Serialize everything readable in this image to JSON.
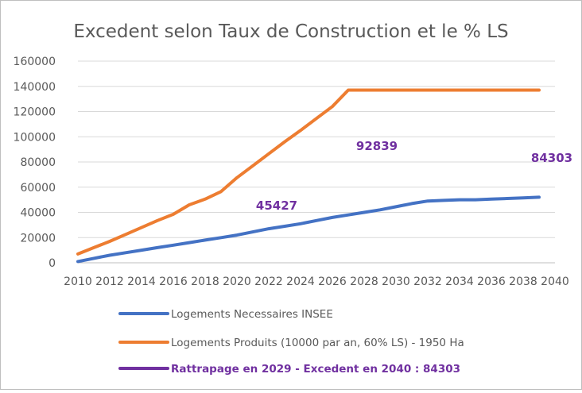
{
  "chart_data": {
    "type": "line",
    "title": "Excedent selon Taux de Construction et le % LS",
    "xlabel": "",
    "ylabel": "",
    "xlim": [
      2010,
      2040
    ],
    "ylim": [
      0,
      160000
    ],
    "x_ticks": [
      "2010",
      "2012",
      "2014",
      "2016",
      "2018",
      "2020",
      "2022",
      "2024",
      "2026",
      "2028",
      "2030",
      "2032",
      "2034",
      "2036",
      "2038",
      "2040"
    ],
    "y_ticks": [
      "0",
      "20000",
      "40000",
      "60000",
      "80000",
      "100000",
      "120000",
      "140000",
      "160000"
    ],
    "grid": true,
    "legend_position": "bottom",
    "series": [
      {
        "name": "Logements Necessaires INSEE",
        "color": "#4472c4",
        "x": [
          2010,
          2011,
          2012,
          2013,
          2014,
          2015,
          2016,
          2017,
          2018,
          2019,
          2020,
          2021,
          2022,
          2023,
          2024,
          2025,
          2026,
          2027,
          2028,
          2029,
          2030,
          2031,
          2032,
          2033,
          2034,
          2035,
          2036,
          2037,
          2038,
          2039
        ],
        "values": [
          1000,
          3500,
          6000,
          8000,
          10000,
          12000,
          14000,
          16000,
          18000,
          20000,
          22000,
          24500,
          27000,
          29000,
          31000,
          33500,
          36000,
          38000,
          40000,
          42000,
          44500,
          47000,
          49000,
          49500,
          50000,
          50000,
          50500,
          51000,
          51500,
          52000
        ]
      },
      {
        "name": "Logements Produits (10000 par an, 60% LS) - 1950 Ha",
        "color": "#ed7d31",
        "x": [
          2010,
          2011,
          2012,
          2013,
          2014,
          2015,
          2016,
          2017,
          2018,
          2019,
          2020,
          2021,
          2022,
          2023,
          2024,
          2025,
          2026,
          2027,
          2028,
          2029,
          2030,
          2031,
          2032,
          2033,
          2034,
          2035,
          2036,
          2037,
          2038,
          2039
        ],
        "values": [
          7000,
          12000,
          17000,
          22500,
          28000,
          33500,
          38500,
          46000,
          50500,
          56500,
          67500,
          77000,
          86500,
          96000,
          105000,
          114500,
          124000,
          137000,
          137000,
          137000,
          137000,
          137000,
          137000,
          137000,
          137000,
          137000,
          137000,
          137000,
          137000,
          137000
        ]
      },
      {
        "name": "Rattrapage en 2029 - Excedent en 2040 : 84303",
        "color": "#7030a0",
        "x": [],
        "values": []
      }
    ],
    "annotations": [
      {
        "text": "45427",
        "x": 2022.5,
        "y": 45500,
        "color": "#7030a0"
      },
      {
        "text": "92839",
        "x": 2028.8,
        "y": 92500,
        "color": "#7030a0"
      },
      {
        "text": "84303",
        "x": 2039.8,
        "y": 83000,
        "color": "#7030a0"
      }
    ]
  }
}
